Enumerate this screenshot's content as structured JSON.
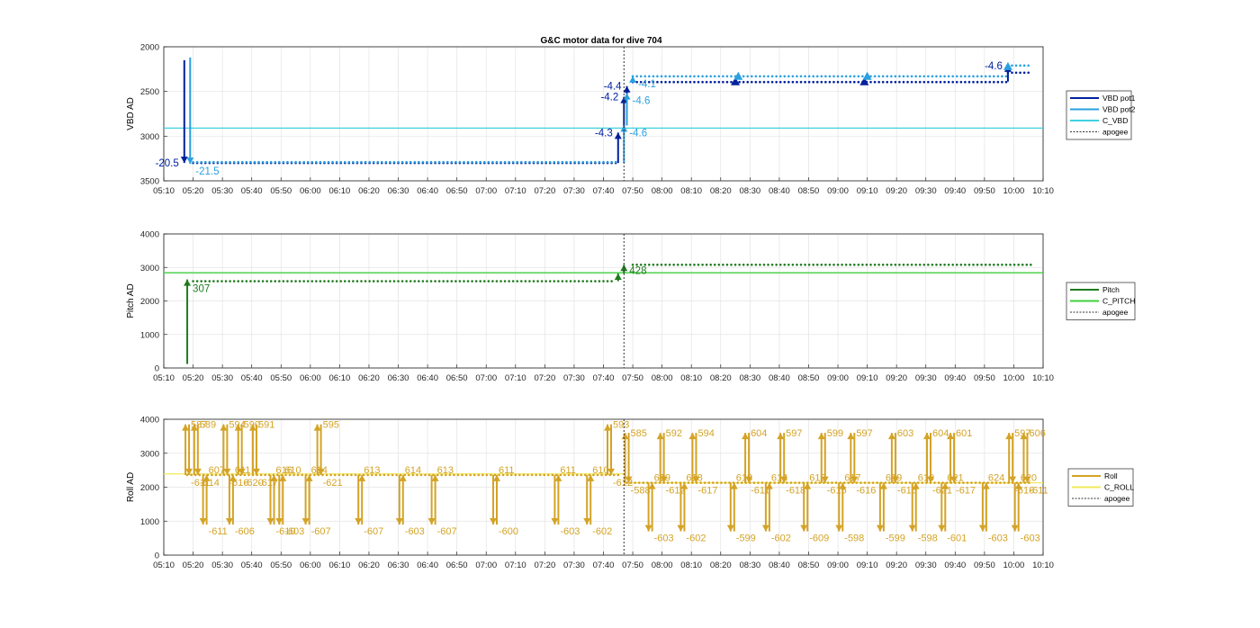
{
  "figure": {
    "title": "G&C motor data for dive 704"
  },
  "chart_data": [
    {
      "type": "line",
      "id": "vbd",
      "ylabel": "VBD AD",
      "xlabel": "",
      "ylim": [
        2000,
        3500
      ],
      "y_reversed": true,
      "yticks": [
        "2000",
        "2500",
        "3000",
        "3500"
      ],
      "xlim": [
        "05:10",
        "10:10"
      ],
      "xticks": [
        "05:10",
        "05:20",
        "05:30",
        "05:40",
        "05:50",
        "06:00",
        "06:10",
        "06:20",
        "06:30",
        "06:40",
        "06:50",
        "07:00",
        "07:10",
        "07:20",
        "07:30",
        "07:40",
        "07:50",
        "08:00",
        "08:10",
        "08:20",
        "08:30",
        "08:40",
        "08:50",
        "09:00",
        "09:10",
        "09:20",
        "09:30",
        "09:40",
        "09:50",
        "10:00",
        "10:10"
      ],
      "grid": true,
      "legend_position": "outside-right",
      "legend": [
        "VBD pot1",
        "VBD pot2",
        "C_VBD",
        "apogee"
      ],
      "colors": {
        "pot1": "#00209e",
        "pot2": "#2aa0e0",
        "c_line": "#3fd0e0",
        "apogee": "#333333"
      },
      "c_value": 2910,
      "apogee": "07:47",
      "moves": [
        {
          "t": "05:17",
          "from": 2150,
          "to": 3300,
          "series": "pot1",
          "label": "-20.5"
        },
        {
          "t": "05:19",
          "from": 2120,
          "to": 3310,
          "series": "pot2",
          "label": "-21.5"
        },
        {
          "t": "07:45",
          "from": 3300,
          "to": 2960,
          "series": "pot1",
          "label": "-4.3"
        },
        {
          "t": "07:47",
          "from": 2960,
          "to": 2560,
          "series": "pot1",
          "label": "-4.2"
        },
        {
          "t": "07:48",
          "from": 2560,
          "to": 2440,
          "series": "pot1",
          "label": "-4.4"
        },
        {
          "t": "07:47",
          "from": 3300,
          "to": 2880,
          "series": "pot2",
          "label": "-4.6"
        },
        {
          "t": "07:48",
          "from": 2880,
          "to": 2520,
          "series": "pot2",
          "label": "-4.6"
        },
        {
          "t": "07:50",
          "from": 2400,
          "to": 2330,
          "series": "pot2",
          "label": "-4.1"
        },
        {
          "t": "09:58",
          "from": 2390,
          "to": 2210,
          "series": "pot1",
          "label": "-4.6"
        }
      ],
      "markers": [
        {
          "t": "08:25",
          "y": 2390,
          "series": "pot1"
        },
        {
          "t": "08:26",
          "y": 2330,
          "series": "pot2"
        },
        {
          "t": "09:09",
          "y": 2390,
          "series": "pot1"
        },
        {
          "t": "09:10",
          "y": 2330,
          "series": "pot2"
        },
        {
          "t": "09:58",
          "y": 2220,
          "series": "pot2"
        }
      ],
      "dot_segments": [
        {
          "series": "pot1",
          "from": "05:20",
          "to": "07:45",
          "y": 3300
        },
        {
          "series": "pot2",
          "from": "05:20",
          "to": "07:45",
          "y": 3290
        },
        {
          "series": "pot1",
          "from": "07:50",
          "to": "09:58",
          "y": 2395
        },
        {
          "series": "pot2",
          "from": "07:50",
          "to": "09:58",
          "y": 2330
        },
        {
          "series": "pot1",
          "from": "09:58",
          "to": "10:06",
          "y": 2290
        },
        {
          "series": "pot2",
          "from": "09:58",
          "to": "10:06",
          "y": 2210
        }
      ]
    },
    {
      "type": "line",
      "id": "pitch",
      "ylabel": "Pitch AD",
      "xlabel": "",
      "ylim": [
        0,
        4000
      ],
      "y_reversed": false,
      "yticks": [
        "0",
        "1000",
        "2000",
        "3000",
        "4000"
      ],
      "xlim": [
        "05:10",
        "10:10"
      ],
      "xticks": [
        "05:10",
        "05:20",
        "05:30",
        "05:40",
        "05:50",
        "06:00",
        "06:10",
        "06:20",
        "06:30",
        "06:40",
        "06:50",
        "07:00",
        "07:10",
        "07:20",
        "07:30",
        "07:40",
        "07:50",
        "08:00",
        "08:10",
        "08:20",
        "08:30",
        "08:40",
        "08:50",
        "09:00",
        "09:10",
        "09:20",
        "09:30",
        "09:40",
        "09:50",
        "10:00",
        "10:10"
      ],
      "grid": true,
      "legend_position": "outside-right",
      "legend": [
        "Pitch",
        "C_PITCH",
        "apogee"
      ],
      "colors": {
        "series": "#1e7b1e",
        "c_line": "#3ecf3e",
        "apogee": "#333333"
      },
      "c_value": 2840,
      "apogee": "07:47",
      "moves": [
        {
          "t": "05:18",
          "from": 120,
          "to": 2640,
          "label": "307"
        },
        {
          "t": "07:45",
          "from": 2590,
          "to": 2820,
          "label": ""
        },
        {
          "t": "07:47",
          "from": 2820,
          "to": 3080,
          "label": "428"
        }
      ],
      "dot_segments": [
        {
          "from": "05:20",
          "to": "07:44",
          "y": 2590
        },
        {
          "from": "07:50",
          "to": "10:06",
          "y": 3080
        }
      ]
    },
    {
      "type": "line",
      "id": "roll",
      "ylabel": "Roll AD",
      "xlabel": "",
      "ylim": [
        0,
        4000
      ],
      "y_reversed": false,
      "yticks": [
        "0",
        "1000",
        "2000",
        "3000",
        "4000"
      ],
      "xlim": [
        "05:10",
        "10:10"
      ],
      "xticks": [
        "05:10",
        "05:20",
        "05:30",
        "05:40",
        "05:50",
        "06:00",
        "06:10",
        "06:20",
        "06:30",
        "06:40",
        "06:50",
        "07:00",
        "07:10",
        "07:20",
        "07:30",
        "07:40",
        "07:50",
        "08:00",
        "08:10",
        "08:20",
        "08:30",
        "08:40",
        "08:50",
        "09:00",
        "09:10",
        "09:20",
        "09:30",
        "09:40",
        "09:50",
        "10:00",
        "10:10"
      ],
      "grid": true,
      "legend_position": "outside-right",
      "legend": [
        "Roll",
        "C_ROLL",
        "apogee"
      ],
      "colors": {
        "series": "#d4a325",
        "c_line": "#f0ea5a",
        "apogee": "#333333"
      },
      "c_roll_before": 2390,
      "c_roll_after": 2130,
      "apogee": "07:47",
      "spikes": [
        {
          "t": "05:18",
          "base": 2360,
          "peak": 3850,
          "up": "587",
          "down": "-611"
        },
        {
          "t": "05:21",
          "base": 2360,
          "peak": 3850,
          "up": "589",
          "down": "-614"
        },
        {
          "t": "05:24",
          "base": 2360,
          "peak": 900,
          "up": "607",
          "down": "-611"
        },
        {
          "t": "05:31",
          "base": 2360,
          "peak": 3850,
          "up": "594",
          "down": "-616"
        },
        {
          "t": "05:33",
          "base": 2360,
          "peak": 900,
          "up": "611",
          "down": "-606"
        },
        {
          "t": "05:36",
          "base": 2360,
          "peak": 3850,
          "up": "590",
          "down": "-620"
        },
        {
          "t": "05:41",
          "base": 2360,
          "peak": 3850,
          "up": "591",
          "down": "-617"
        },
        {
          "t": "05:47",
          "base": 2360,
          "peak": 900,
          "up": "616",
          "down": "-610"
        },
        {
          "t": "05:50",
          "base": 2360,
          "peak": 900,
          "up": "610",
          "down": "-603"
        },
        {
          "t": "05:59",
          "base": 2360,
          "peak": 900,
          "up": "614",
          "down": "-607"
        },
        {
          "t": "06:03",
          "base": 2360,
          "peak": 3850,
          "up": "595",
          "down": "-621"
        },
        {
          "t": "06:17",
          "base": 2360,
          "peak": 900,
          "up": "613",
          "down": "-607"
        },
        {
          "t": "06:31",
          "base": 2360,
          "peak": 900,
          "up": "614",
          "down": "-603"
        },
        {
          "t": "06:42",
          "base": 2360,
          "peak": 900,
          "up": "613",
          "down": "-607"
        },
        {
          "t": "07:03",
          "base": 2360,
          "peak": 900,
          "up": "611",
          "down": "-600"
        },
        {
          "t": "07:24",
          "base": 2360,
          "peak": 900,
          "up": "611",
          "down": "-603"
        },
        {
          "t": "07:35",
          "base": 2360,
          "peak": 900,
          "up": "610",
          "down": "-602"
        },
        {
          "t": "07:42",
          "base": 2360,
          "peak": 3850,
          "up": "593",
          "down": "-612"
        },
        {
          "t": "07:48",
          "base": 2130,
          "peak": 3600,
          "up": "585",
          "down": "-588"
        },
        {
          "t": "07:56",
          "base": 2130,
          "peak": 700,
          "up": "619",
          "down": "-603"
        },
        {
          "t": "08:00",
          "base": 2130,
          "peak": 3600,
          "up": "592",
          "down": "-612"
        },
        {
          "t": "08:07",
          "base": 2130,
          "peak": 700,
          "up": "618",
          "down": "-602"
        },
        {
          "t": "08:11",
          "base": 2130,
          "peak": 3600,
          "up": "594",
          "down": "-617"
        },
        {
          "t": "08:24",
          "base": 2130,
          "peak": 700,
          "up": "618",
          "down": "-599"
        },
        {
          "t": "08:29",
          "base": 2130,
          "peak": 3600,
          "up": "604",
          "down": "-611"
        },
        {
          "t": "08:36",
          "base": 2130,
          "peak": 700,
          "up": "614",
          "down": "-602"
        },
        {
          "t": "08:41",
          "base": 2130,
          "peak": 3600,
          "up": "597",
          "down": "-618"
        },
        {
          "t": "08:49",
          "base": 2130,
          "peak": 700,
          "up": "612",
          "down": "-609"
        },
        {
          "t": "08:55",
          "base": 2130,
          "peak": 3600,
          "up": "599",
          "down": "-615"
        },
        {
          "t": "09:01",
          "base": 2130,
          "peak": 700,
          "up": "617",
          "down": "-598"
        },
        {
          "t": "09:05",
          "base": 2130,
          "peak": 3600,
          "up": "597",
          "down": "-616"
        },
        {
          "t": "09:15",
          "base": 2130,
          "peak": 700,
          "up": "619",
          "down": "-599"
        },
        {
          "t": "09:19",
          "base": 2130,
          "peak": 3600,
          "up": "603",
          "down": "-616"
        },
        {
          "t": "09:26",
          "base": 2130,
          "peak": 700,
          "up": "619",
          "down": "-598"
        },
        {
          "t": "09:31",
          "base": 2130,
          "peak": 3600,
          "up": "604",
          "down": "-621"
        },
        {
          "t": "09:36",
          "base": 2130,
          "peak": 700,
          "up": "621",
          "down": "-601"
        },
        {
          "t": "09:39",
          "base": 2130,
          "peak": 3600,
          "up": "601",
          "down": "-617"
        },
        {
          "t": "09:50",
          "base": 2130,
          "peak": 700,
          "up": "624",
          "down": "-603"
        },
        {
          "t": "09:59",
          "base": 2130,
          "peak": 3600,
          "up": "597",
          "down": "-616"
        },
        {
          "t": "10:01",
          "base": 2130,
          "peak": 700,
          "up": "620",
          "down": "-603"
        },
        {
          "t": "10:04",
          "base": 2130,
          "peak": 3600,
          "up": "606",
          "down": "-611"
        }
      ],
      "dot_segments": [
        {
          "from": "05:18",
          "to": "07:45",
          "y": 2360
        },
        {
          "from": "07:48",
          "to": "10:06",
          "y": 2130
        }
      ]
    }
  ]
}
